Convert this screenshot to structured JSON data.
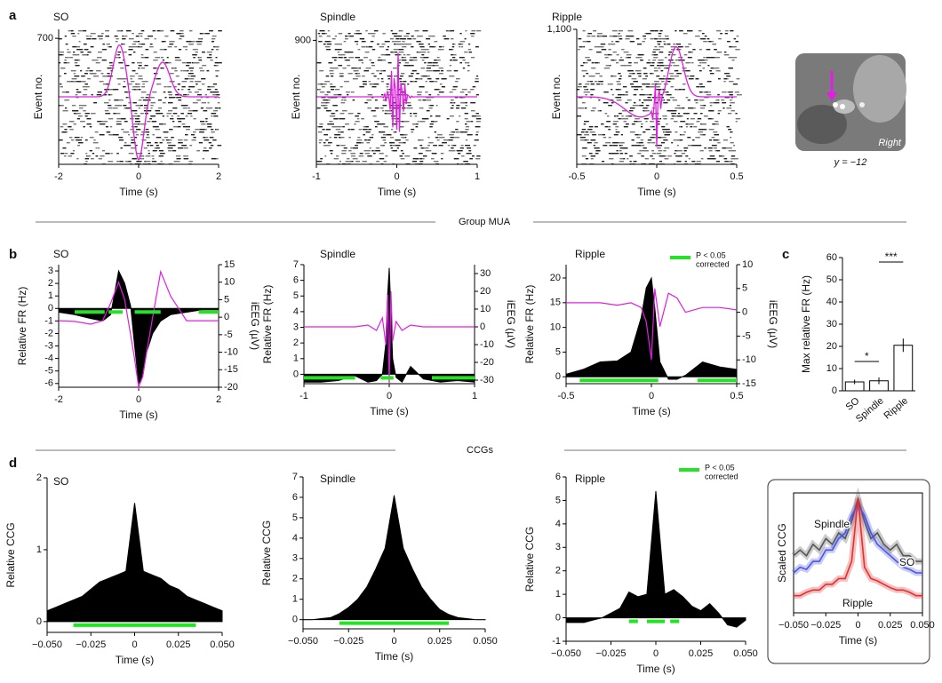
{
  "panel_labels": [
    "a",
    "b",
    "c",
    "d"
  ],
  "section_labels": [
    "Group MUA",
    "CCGs"
  ],
  "image": {
    "label": "Right",
    "caption": "y = −12"
  },
  "chart_data": [
    {
      "type": "raster",
      "title": "SO",
      "xlabel": "Time (s)",
      "ylabel": "Event no.",
      "xlim": [
        -2,
        2
      ],
      "xticks": [
        -2,
        0,
        2
      ],
      "ylim": [
        0,
        750
      ],
      "yticks": [
        700
      ]
    },
    {
      "type": "raster",
      "title": "Spindle",
      "xlabel": "Time (s)",
      "ylabel": "Event no.",
      "xlim": [
        -1,
        1
      ],
      "xticks": [
        -1,
        0,
        1
      ],
      "ylim": [
        0,
        980
      ],
      "yticks": [
        900
      ]
    },
    {
      "type": "raster",
      "title": "Ripple",
      "xlabel": "Time (s)",
      "ylabel": "Event no.",
      "xlim": [
        -0.5,
        0.5
      ],
      "xticks": [
        -0.5,
        0,
        0.5
      ],
      "ylim": [
        0,
        1100
      ],
      "yticks": [
        {
          "value": 1100,
          "label": "1,100"
        }
      ]
    },
    {
      "type": "line",
      "title": "SO",
      "xlabel": "Time (s)",
      "ylabel": "Relative FR (Hz)",
      "y2label": "iEEG (µV)",
      "xlim": [
        -2,
        2
      ],
      "xticks": [
        -2,
        0,
        2
      ],
      "ylim": [
        -6.3,
        3.5
      ],
      "yticks": [
        -6,
        -5,
        -4,
        -3,
        -2,
        -1,
        0,
        1,
        2,
        3
      ],
      "y2lim": [
        -20,
        15
      ],
      "y2ticks": [
        -20,
        -15,
        -10,
        -5,
        0,
        5,
        10,
        15
      ],
      "x": [
        -2,
        -1.6,
        -1.2,
        -0.9,
        -0.7,
        -0.5,
        -0.35,
        -0.2,
        -0.1,
        0,
        0.1,
        0.2,
        0.35,
        0.55,
        0.8,
        1.2,
        1.6,
        2
      ],
      "series": [
        {
          "kind": "area",
          "color": "#000000",
          "values": [
            -0.3,
            -0.5,
            -0.8,
            -1,
            -0.5,
            3,
            2,
            0.2,
            -3,
            -6,
            -5.5,
            -3.5,
            -2,
            -1,
            -0.5,
            -0.3,
            -0.1,
            -0.1
          ]
        },
        {
          "kind": "line",
          "axis": "y2",
          "color": "#e020e0",
          "values": [
            -1,
            -1.2,
            -2,
            -1,
            4,
            10,
            5,
            -5,
            -12,
            -20,
            -17,
            -10,
            0,
            13,
            6,
            -1,
            -1,
            -1
          ]
        }
      ],
      "significance": [
        [
          -1.6,
          -0.85
        ],
        [
          -0.75,
          -0.4
        ],
        [
          -0.1,
          0.55
        ],
        [
          1.5,
          2
        ]
      ],
      "significance_color": "#22e422"
    },
    {
      "type": "line",
      "title": "Spindle",
      "xlabel": "Time (s)",
      "ylabel": "Relative FR (Hz)",
      "y2label": "iEEG (µV)",
      "xlim": [
        -1,
        1
      ],
      "xticks": [
        -1,
        0,
        1
      ],
      "ylim": [
        -0.6,
        7
      ],
      "yticks": [
        0,
        1,
        2,
        3,
        4,
        5,
        6,
        7
      ],
      "y2lim": [
        -32,
        35
      ],
      "y2ticks": [
        -30,
        -20,
        -10,
        0,
        10,
        20,
        30
      ],
      "x": [
        -1,
        -0.8,
        -0.6,
        -0.4,
        -0.25,
        -0.15,
        -0.08,
        -0.04,
        -0.02,
        0,
        0.02,
        0.04,
        0.08,
        0.15,
        0.25,
        0.4,
        0.6,
        0.8,
        1
      ],
      "series": [
        {
          "kind": "area",
          "color": "#000000",
          "values": [
            -0.5,
            -0.5,
            -0.4,
            -0.1,
            -0.5,
            -0.4,
            0,
            2,
            5,
            6.8,
            4,
            1,
            -0.2,
            -0.5,
            0.5,
            -0.3,
            -0.5,
            -0.4,
            -0.5
          ]
        },
        {
          "kind": "line",
          "axis": "y2",
          "color": "#e020e0",
          "values": [
            0,
            0,
            0,
            0,
            1,
            -2,
            5,
            -10,
            18,
            -32,
            20,
            -8,
            3,
            -2,
            1,
            0,
            0,
            0,
            0
          ]
        }
      ],
      "significance": [
        [
          -1,
          -0.4
        ],
        [
          -0.1,
          0.05
        ],
        [
          0.5,
          1
        ]
      ],
      "significance_color": "#22e422"
    },
    {
      "type": "line",
      "title": "Ripple",
      "xlabel": "Time (s)",
      "ylabel": "Relative FR (Hz)",
      "y2label": "iEEG (µV)",
      "xlim": [
        -0.5,
        0.5
      ],
      "xticks": [
        -0.5,
        0,
        0.5
      ],
      "ylim": [
        -1.4,
        22.7
      ],
      "yticks": [
        0,
        5,
        10,
        15,
        20
      ],
      "y2lim": [
        -15,
        10
      ],
      "y2ticks": [
        -15,
        -10,
        -5,
        0,
        5,
        10
      ],
      "x": [
        -0.5,
        -0.4,
        -0.3,
        -0.2,
        -0.12,
        -0.06,
        -0.03,
        0,
        0.02,
        0.05,
        0.1,
        0.15,
        0.2,
        0.3,
        0.4,
        0.5
      ],
      "series": [
        {
          "kind": "area",
          "color": "#000000",
          "values": [
            0.5,
            1.5,
            3,
            3.2,
            5,
            12,
            18,
            20,
            14,
            3,
            -0.5,
            -0.5,
            0.3,
            3,
            2,
            1.5
          ]
        },
        {
          "kind": "line",
          "axis": "y2",
          "color": "#e020e0",
          "values": [
            2,
            2,
            2,
            1.5,
            2,
            1,
            -2,
            -10,
            5,
            -3,
            4,
            3,
            0,
            1,
            1,
            0.5
          ]
        }
      ],
      "significance": [
        [
          -0.42,
          0.04
        ],
        [
          0.27,
          0.5
        ]
      ],
      "significance_color": "#22e422",
      "significance_label": [
        "P < 0.05",
        "corrected"
      ]
    },
    {
      "type": "bar",
      "ylabel": "Max relative FR (Hz)",
      "categories": [
        "SO",
        "Spindle",
        "Ripple"
      ],
      "values": [
        4,
        4.5,
        20.5
      ],
      "errors": [
        1,
        1.5,
        3
      ],
      "ylim": [
        0,
        60
      ],
      "yticks": [
        0,
        10,
        20,
        30,
        40,
        50,
        60
      ],
      "annotations": [
        "*",
        "***"
      ]
    },
    {
      "type": "line",
      "title": "SO",
      "xlabel": "Time (s)",
      "ylabel": "Relative CCG",
      "xlim": [
        -0.05,
        0.05
      ],
      "xticks": [
        {
          "value": -0.05,
          "label": "−0.050"
        },
        {
          "value": -0.025,
          "label": "−0.025"
        },
        0,
        0.025,
        {
          "value": 0.05,
          "label": "0.050"
        }
      ],
      "ylim": [
        -0.15,
        2
      ],
      "yticks": [
        0,
        1,
        2
      ],
      "x": [
        -0.05,
        -0.045,
        -0.04,
        -0.035,
        -0.03,
        -0.025,
        -0.02,
        -0.015,
        -0.01,
        -0.005,
        0,
        0.005,
        0.01,
        0.015,
        0.02,
        0.025,
        0.03,
        0.035,
        0.04,
        0.045,
        0.05
      ],
      "series": [
        {
          "kind": "area",
          "color": "#000000",
          "values": [
            0.15,
            0.2,
            0.25,
            0.3,
            0.35,
            0.45,
            0.55,
            0.6,
            0.65,
            0.7,
            1.65,
            0.7,
            0.65,
            0.6,
            0.5,
            0.45,
            0.35,
            0.3,
            0.25,
            0.2,
            0.15
          ]
        }
      ],
      "significance": [
        [
          -0.035,
          0.035
        ]
      ],
      "significance_color": "#22e422"
    },
    {
      "type": "line",
      "title": "Spindle",
      "xlabel": "Time (s)",
      "ylabel": "Relative CCG",
      "xlim": [
        -0.05,
        0.05
      ],
      "xticks": [
        {
          "value": -0.05,
          "label": "−0.050"
        },
        {
          "value": -0.025,
          "label": "−0.025"
        },
        0,
        0.025,
        {
          "value": 0.05,
          "label": "0.050"
        }
      ],
      "ylim": [
        -0.45,
        7
      ],
      "yticks": [
        0,
        1,
        2,
        3,
        4,
        5,
        6,
        7
      ],
      "x": [
        -0.05,
        -0.045,
        -0.04,
        -0.035,
        -0.03,
        -0.025,
        -0.02,
        -0.015,
        -0.01,
        -0.005,
        0,
        0.005,
        0.01,
        0.015,
        0.02,
        0.025,
        0.03,
        0.035,
        0.04,
        0.045,
        0.05
      ],
      "series": [
        {
          "kind": "area",
          "color": "#000000",
          "values": [
            0,
            0,
            0.05,
            0.1,
            0.3,
            0.6,
            1.0,
            1.6,
            2.5,
            3.5,
            6.1,
            3.5,
            2.5,
            1.6,
            1.0,
            0.5,
            0.25,
            0.1,
            0.05,
            0,
            0
          ]
        }
      ],
      "significance": [
        [
          -0.03,
          0.03
        ]
      ],
      "significance_color": "#22e422"
    },
    {
      "type": "line",
      "title": "Ripple",
      "xlabel": "Time (s)",
      "ylabel": "Relative CCG",
      "xlim": [
        -0.05,
        0.05
      ],
      "xticks": [
        {
          "value": -0.05,
          "label": "−0.050"
        },
        {
          "value": -0.025,
          "label": "−0.025"
        },
        0,
        0.025,
        {
          "value": 0.05,
          "label": "0.050"
        }
      ],
      "ylim": [
        -1,
        6
      ],
      "yticks": [
        -1,
        0,
        1,
        2,
        3,
        4,
        5,
        6
      ],
      "x": [
        -0.05,
        -0.045,
        -0.04,
        -0.035,
        -0.03,
        -0.025,
        -0.02,
        -0.015,
        -0.01,
        -0.005,
        0,
        0.005,
        0.01,
        0.015,
        0.02,
        0.025,
        0.03,
        0.035,
        0.04,
        0.045,
        0.05
      ],
      "series": [
        {
          "kind": "area",
          "color": "#000000",
          "values": [
            -0.2,
            -0.2,
            -0.2,
            -0.1,
            0,
            0.2,
            0.4,
            1.1,
            0.9,
            1.0,
            5.4,
            1.0,
            1.2,
            0.9,
            0.5,
            0.3,
            0.6,
            0.2,
            -0.3,
            -0.4,
            -0.1
          ]
        }
      ],
      "significance": [
        [
          -0.015,
          -0.01
        ],
        [
          -0.005,
          0.005
        ],
        [
          0.008,
          0.013
        ]
      ],
      "significance_color": "#22e422",
      "significance_label": [
        "P < 0.05",
        "corrected"
      ]
    },
    {
      "type": "line",
      "xlabel": "Time (s)",
      "ylabel": "Scaled CCG",
      "xlim": [
        -0.05,
        0.05
      ],
      "xticks": [
        {
          "value": -0.05,
          "label": "−0.050"
        },
        {
          "value": -0.025,
          "label": "−0.025"
        },
        0,
        0.025,
        {
          "value": 0.05,
          "label": "0.050"
        }
      ],
      "ylim": [
        0,
        1.05
      ],
      "x": [
        -0.05,
        -0.045,
        -0.04,
        -0.035,
        -0.03,
        -0.025,
        -0.02,
        -0.015,
        -0.01,
        -0.005,
        0,
        0.005,
        0.01,
        0.015,
        0.02,
        0.025,
        0.03,
        0.035,
        0.04,
        0.045,
        0.05
      ],
      "series": [
        {
          "name": "SO",
          "kind": "line",
          "color": "#555555",
          "values": [
            0.5,
            0.55,
            0.5,
            0.6,
            0.55,
            0.65,
            0.6,
            0.7,
            0.65,
            0.8,
            1.0,
            0.8,
            0.65,
            0.7,
            0.6,
            0.55,
            0.6,
            0.5,
            0.5,
            0.45,
            0.45
          ]
        },
        {
          "name": "Spindle",
          "kind": "line",
          "color": "#4a55e0",
          "values": [
            0.35,
            0.4,
            0.38,
            0.45,
            0.45,
            0.55,
            0.55,
            0.65,
            0.7,
            0.85,
            0.95,
            0.85,
            0.7,
            0.6,
            0.55,
            0.5,
            0.45,
            0.4,
            0.38,
            0.35,
            0.35
          ]
        },
        {
          "name": "Ripple",
          "kind": "line",
          "color": "#e03030",
          "values": [
            0.15,
            0.15,
            0.18,
            0.2,
            0.2,
            0.25,
            0.25,
            0.3,
            0.3,
            0.45,
            1.0,
            0.4,
            0.3,
            0.28,
            0.25,
            0.22,
            0.2,
            0.2,
            0.18,
            0.15,
            0.15
          ]
        }
      ]
    }
  ]
}
